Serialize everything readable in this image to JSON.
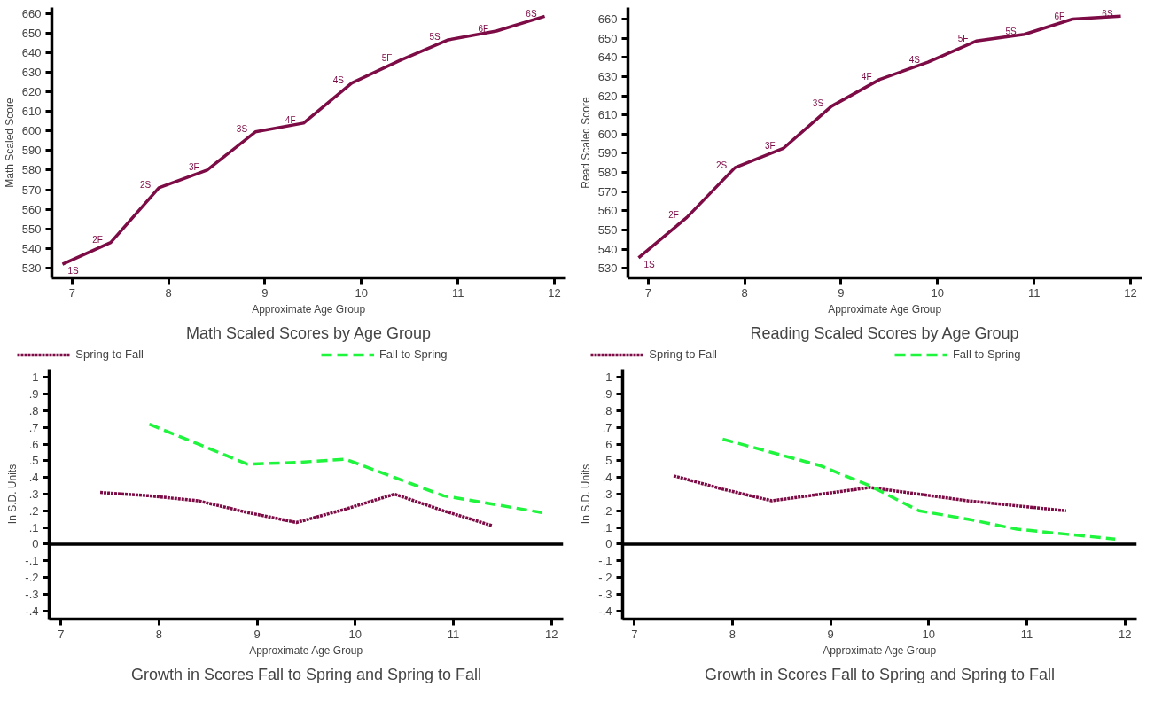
{
  "chart_data": [
    {
      "type": "line",
      "title": "Math Scaled Scores by Age Group",
      "xlabel": "Approximate Age Group",
      "ylabel": "Math Scaled Score",
      "x": [
        6.9,
        7.4,
        7.9,
        8.4,
        8.9,
        9.4,
        9.9,
        10.4,
        10.9,
        11.4,
        11.9
      ],
      "series": [
        {
          "color": "#7d0b45",
          "line_style": "solid",
          "values": [
            532,
            543,
            571,
            580,
            599.5,
            604,
            624.5,
            636,
            646.5,
            651,
            658.5
          ]
        }
      ],
      "xlim": [
        6.79,
        12.12
      ],
      "ylim": [
        525,
        663
      ],
      "xticks": [
        7,
        8,
        9,
        10,
        11,
        12
      ],
      "yticks": [
        530,
        540,
        550,
        560,
        570,
        580,
        590,
        600,
        610,
        620,
        630,
        640,
        650,
        660
      ],
      "grid": false,
      "annotations": [
        {
          "text": "1S",
          "x": 6.9,
          "y": 532
        },
        {
          "text": "2F",
          "x": 7.4,
          "y": 543
        },
        {
          "text": "2S",
          "x": 7.9,
          "y": 571
        },
        {
          "text": "3F",
          "x": 8.4,
          "y": 580
        },
        {
          "text": "3S",
          "x": 8.9,
          "y": 599.5
        },
        {
          "text": "4F",
          "x": 9.4,
          "y": 604
        },
        {
          "text": "4S",
          "x": 9.9,
          "y": 624.5
        },
        {
          "text": "5F",
          "x": 10.4,
          "y": 636
        },
        {
          "text": "5S",
          "x": 10.9,
          "y": 646.5
        },
        {
          "text": "6F",
          "x": 11.4,
          "y": 651
        },
        {
          "text": "6S",
          "x": 11.9,
          "y": 658.5
        }
      ]
    },
    {
      "type": "line",
      "title": "Reading Scaled Scores by Age Group",
      "xlabel": "Approximate Age Group",
      "ylabel": "Read Scaled Score",
      "x": [
        6.9,
        7.4,
        7.9,
        8.4,
        8.9,
        9.4,
        9.9,
        10.4,
        10.9,
        11.4,
        11.9
      ],
      "series": [
        {
          "color": "#7d0b45",
          "line_style": "solid",
          "values": [
            535.5,
            556.5,
            582.5,
            592.5,
            614.5,
            628.5,
            637.5,
            648.5,
            652,
            660,
            661.5
          ]
        }
      ],
      "xlim": [
        6.79,
        12.12
      ],
      "ylim": [
        525,
        666
      ],
      "xticks": [
        7,
        8,
        9,
        10,
        11,
        12
      ],
      "yticks": [
        530,
        540,
        550,
        560,
        570,
        580,
        590,
        600,
        610,
        620,
        630,
        640,
        650,
        660
      ],
      "grid": false,
      "annotations": [
        {
          "text": "1S",
          "x": 6.9,
          "y": 535.5
        },
        {
          "text": "2F",
          "x": 7.4,
          "y": 556.5
        },
        {
          "text": "2S",
          "x": 7.9,
          "y": 582.5
        },
        {
          "text": "3F",
          "x": 8.4,
          "y": 592.5
        },
        {
          "text": "3S",
          "x": 8.9,
          "y": 614.5
        },
        {
          "text": "4F",
          "x": 9.4,
          "y": 628.5
        },
        {
          "text": "4S",
          "x": 9.9,
          "y": 637.5
        },
        {
          "text": "5F",
          "x": 10.4,
          "y": 648.5
        },
        {
          "text": "5S",
          "x": 10.9,
          "y": 652
        },
        {
          "text": "6F",
          "x": 11.4,
          "y": 660
        },
        {
          "text": "6S",
          "x": 11.9,
          "y": 661.5
        }
      ]
    },
    {
      "type": "line",
      "title": "Growth in Scores Fall to Spring and Spring to Fall",
      "xlabel": "Approximate Age Group",
      "ylabel": "In S.D. Units",
      "legend": "top",
      "grid": false,
      "series": [
        {
          "name": "Spring to Fall",
          "color": "#7d0b45",
          "line_style": "dotted",
          "x": [
            7.4,
            7.9,
            8.4,
            8.9,
            9.4,
            9.9,
            10.4,
            10.9,
            11.4
          ],
          "values": [
            0.31,
            0.29,
            0.26,
            0.19,
            0.13,
            0.21,
            0.3,
            0.2,
            0.11
          ]
        },
        {
          "name": "Fall to Spring",
          "color": "#1ef53c",
          "line_style": "dashed",
          "x": [
            7.9,
            8.9,
            9.4,
            9.9,
            10.4,
            10.9,
            11.4,
            11.9
          ],
          "values": [
            0.72,
            0.48,
            0.49,
            0.51,
            0.4,
            0.29,
            0.24,
            0.19
          ]
        }
      ],
      "xlim": [
        6.88,
        12.12
      ],
      "ylim": [
        -0.45,
        1.05
      ],
      "xticks": [
        7,
        8,
        9,
        10,
        11,
        12
      ],
      "yticks": [
        {
          "value": -0.4,
          "label": "-.4"
        },
        {
          "value": -0.3,
          "label": "-.3"
        },
        {
          "value": -0.2,
          "label": "-.2"
        },
        {
          "value": -0.1,
          "label": "-.1"
        },
        0,
        {
          "value": 0.1,
          "label": ".1"
        },
        {
          "value": 0.2,
          "label": ".2"
        },
        {
          "value": 0.3,
          "label": ".3"
        },
        {
          "value": 0.4,
          "label": ".4"
        },
        {
          "value": 0.5,
          "label": ".5"
        },
        {
          "value": 0.6,
          "label": ".6"
        },
        {
          "value": 0.7,
          "label": ".7"
        },
        {
          "value": 0.8,
          "label": ".8"
        },
        {
          "value": 0.9,
          "label": ".9"
        },
        1
      ],
      "ref_lines": [
        {
          "axis": "y",
          "value": 0,
          "color": "#000000"
        }
      ]
    },
    {
      "type": "line",
      "title": "Growth in Scores Fall to Spring and Spring to Fall",
      "xlabel": "Approximate Age Group",
      "ylabel": "In S.D. Units",
      "legend": "top",
      "grid": false,
      "series": [
        {
          "name": "Spring to Fall",
          "color": "#7d0b45",
          "line_style": "dotted",
          "x": [
            7.4,
            7.9,
            8.4,
            8.9,
            9.4,
            9.9,
            10.4,
            10.9,
            11.4
          ],
          "values": [
            0.41,
            0.33,
            0.26,
            0.3,
            0.34,
            0.3,
            0.26,
            0.23,
            0.2
          ]
        },
        {
          "name": "Fall to Spring",
          "color": "#1ef53c",
          "line_style": "dashed",
          "x": [
            7.9,
            8.4,
            8.9,
            9.4,
            9.9,
            10.4,
            10.9,
            11.4,
            11.9
          ],
          "values": [
            0.63,
            0.55,
            0.47,
            0.35,
            0.2,
            0.15,
            0.09,
            0.06,
            0.03
          ]
        }
      ],
      "xlim": [
        6.88,
        12.12
      ],
      "ylim": [
        -0.45,
        1.05
      ],
      "xticks": [
        7,
        8,
        9,
        10,
        11,
        12
      ],
      "yticks": [
        {
          "value": -0.4,
          "label": "-.4"
        },
        {
          "value": -0.3,
          "label": "-.3"
        },
        {
          "value": -0.2,
          "label": "-.2"
        },
        {
          "value": -0.1,
          "label": "-.1"
        },
        0,
        {
          "value": 0.1,
          "label": ".1"
        },
        {
          "value": 0.2,
          "label": ".2"
        },
        {
          "value": 0.3,
          "label": ".3"
        },
        {
          "value": 0.4,
          "label": ".4"
        },
        {
          "value": 0.5,
          "label": ".5"
        },
        {
          "value": 0.6,
          "label": ".6"
        },
        {
          "value": 0.7,
          "label": ".7"
        },
        {
          "value": 0.8,
          "label": ".8"
        },
        {
          "value": 0.9,
          "label": ".9"
        },
        1
      ],
      "ref_lines": [
        {
          "axis": "y",
          "value": 0,
          "color": "#000000"
        }
      ]
    }
  ]
}
